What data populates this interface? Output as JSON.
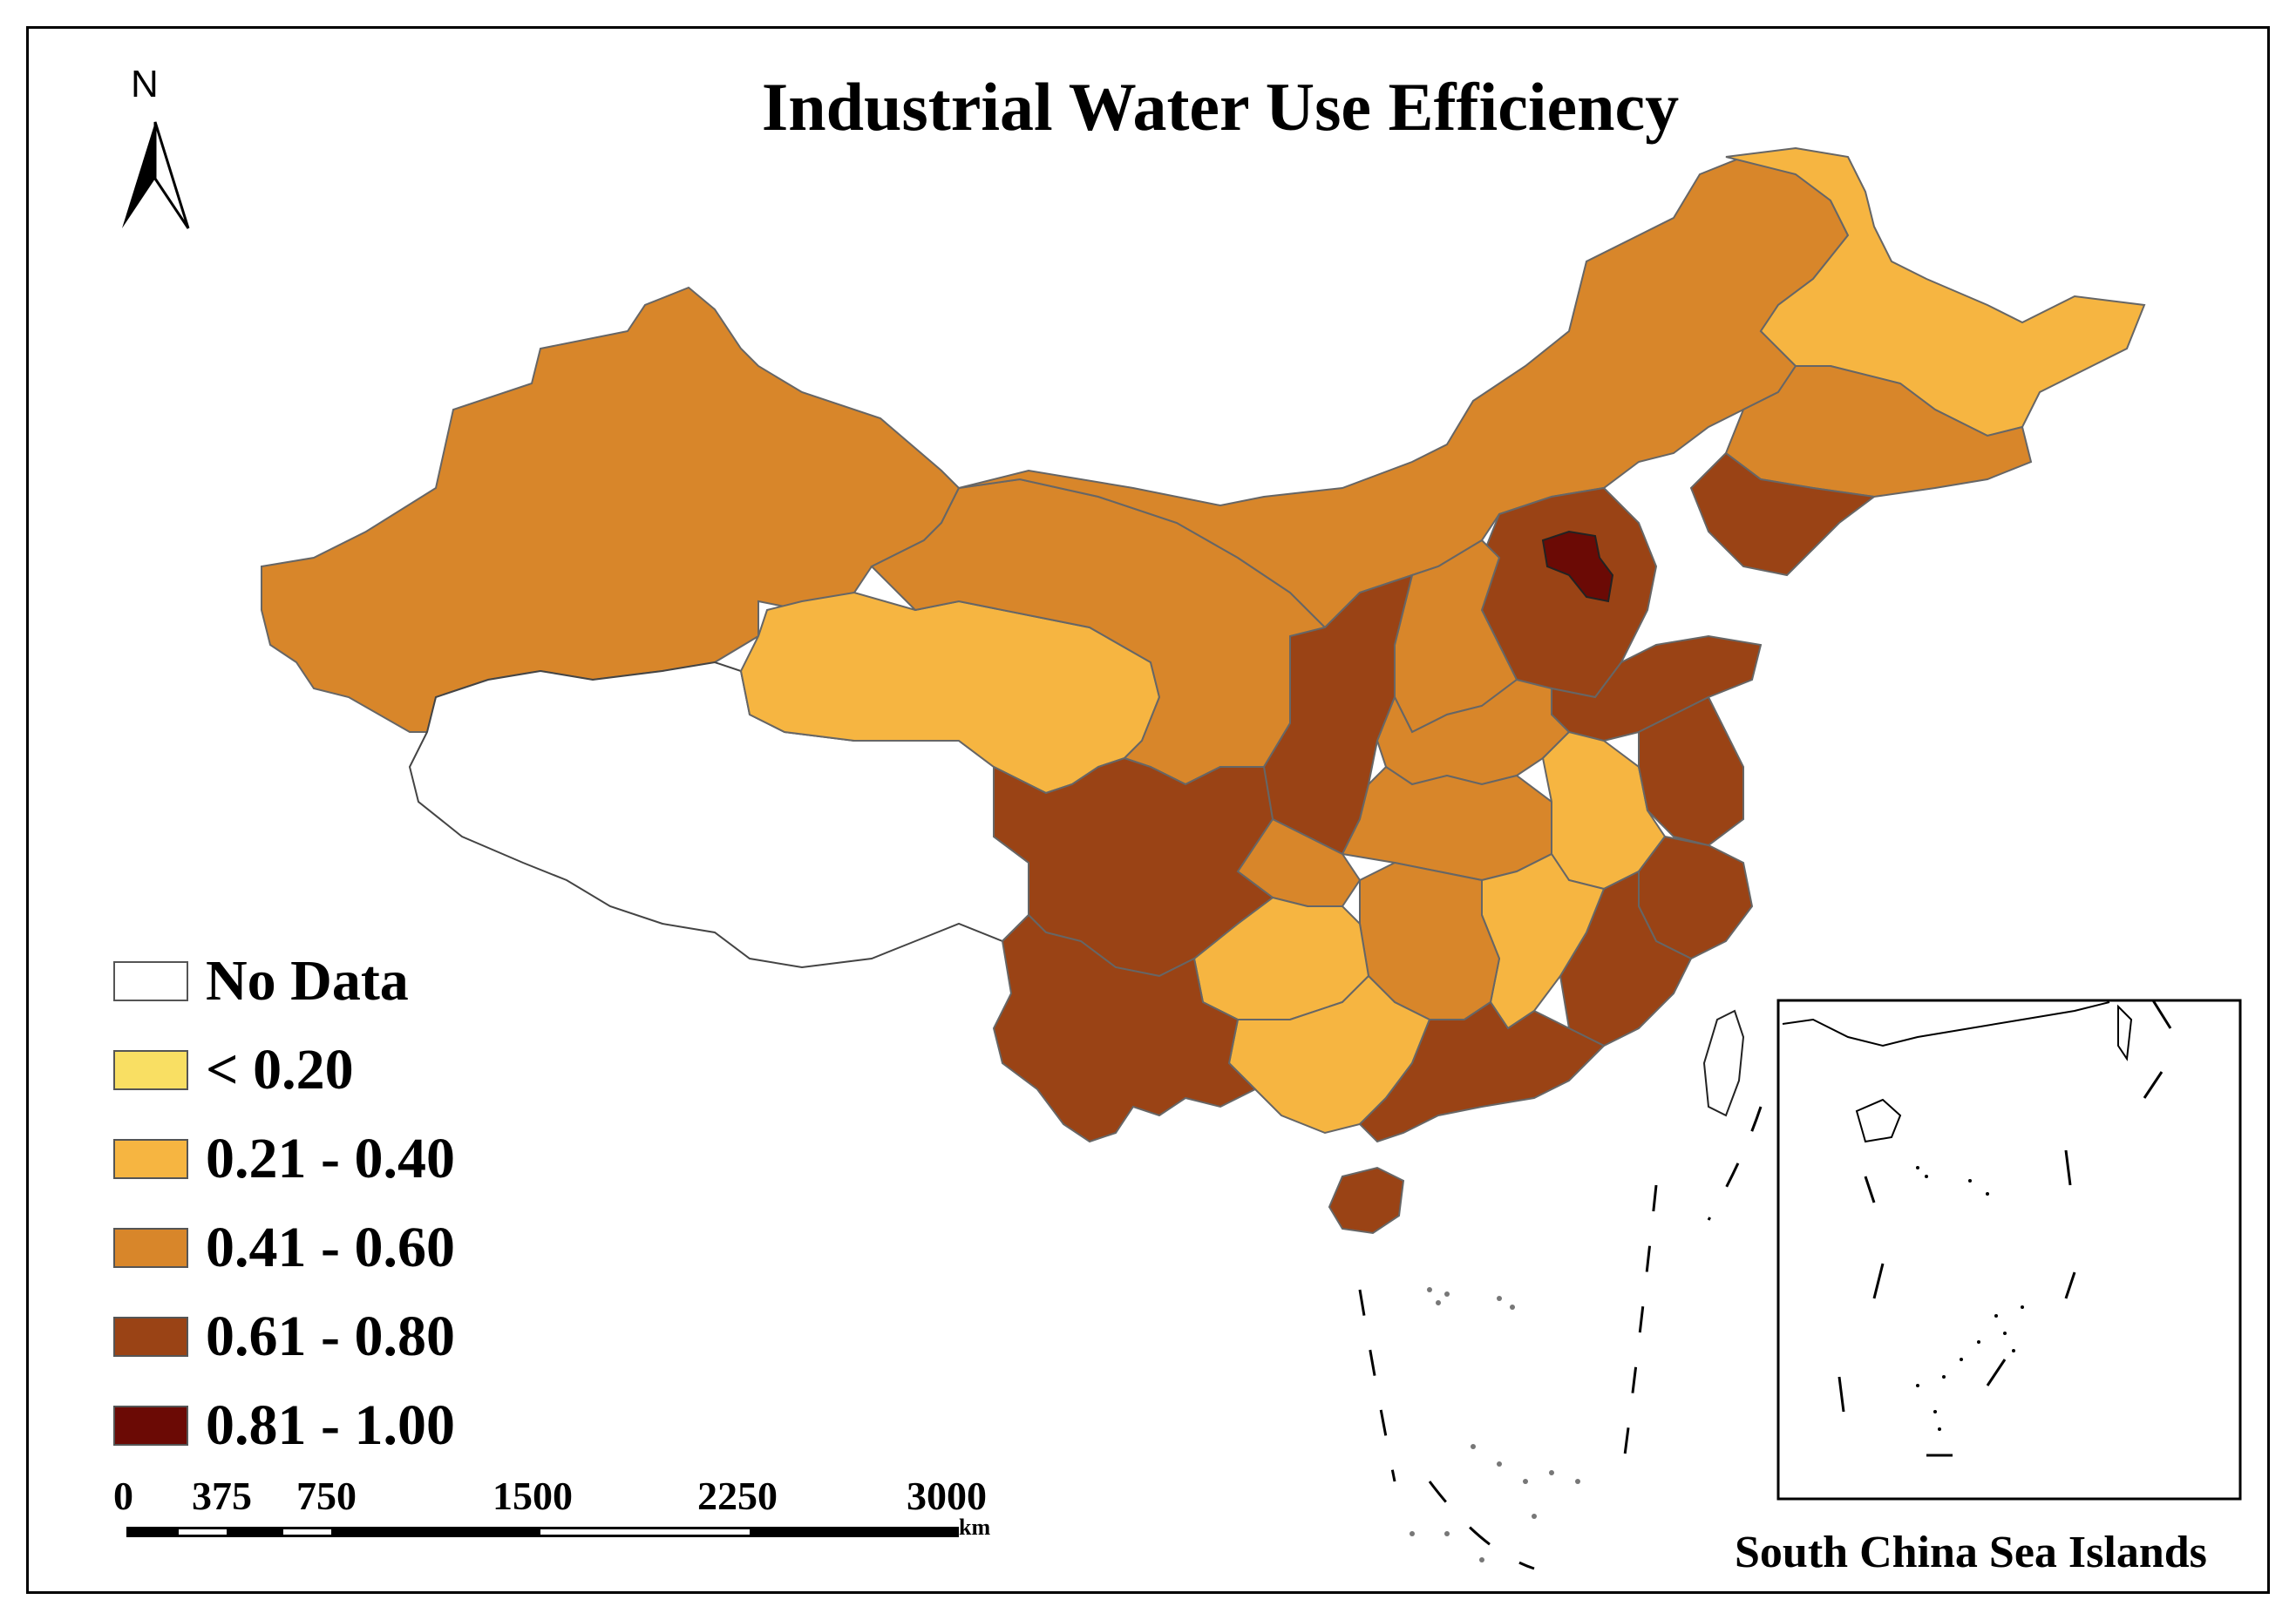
{
  "title": "Industrial Water Use Efficiency",
  "north_arrow": {
    "label": "N"
  },
  "legend": [
    {
      "label": "No Data",
      "color": "#ffffff"
    },
    {
      "label": "< 0.20",
      "color": "#f9df63"
    },
    {
      "label": "0.21 - 0.40",
      "color": "#f6b541"
    },
    {
      "label": "0.41 - 0.60",
      "color": "#d8862a"
    },
    {
      "label": "0.61 - 0.80",
      "color": "#9a4315"
    },
    {
      "label": "0.81 - 1.00",
      "color": "#6b0a05"
    }
  ],
  "scale_bar": {
    "ticks": [
      "0",
      "375",
      "750",
      "1500",
      "2250",
      "3000"
    ],
    "unit": "km"
  },
  "inset": {
    "caption": "South China Sea Islands"
  },
  "regions": [
    {
      "name": "Xinjiang",
      "class": "0.41 - 0.60"
    },
    {
      "name": "Tibet",
      "class": "No Data"
    },
    {
      "name": "Qinghai",
      "class": "0.21 - 0.40"
    },
    {
      "name": "Inner Mongolia",
      "class": "0.41 - 0.60"
    },
    {
      "name": "Heilongjiang",
      "class": "0.21 - 0.40"
    },
    {
      "name": "Beijing",
      "class": "0.81 - 1.00"
    },
    {
      "name": "Sichuan",
      "class": "0.61 - 0.80"
    },
    {
      "name": "Jiangxi",
      "class": "0.21 - 0.40"
    }
  ]
}
